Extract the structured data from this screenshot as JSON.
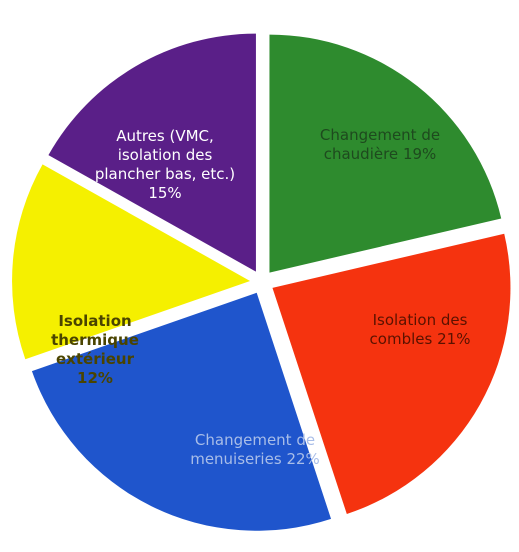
{
  "chart_data": {
    "type": "pie",
    "categories": [
      "Changement de chaudière",
      "Isolation des combles",
      "Changement de menuiseries",
      "Isolation thermique extérieur",
      "Autres (VMC, isolation des plancher bas, etc.)"
    ],
    "values": [
      19,
      21,
      22,
      12,
      15
    ],
    "value_labels": [
      "19%",
      "21%",
      "22%",
      "12%",
      "15%"
    ],
    "colors": [
      "#2e8b2e",
      "#f5330f",
      "#1f55cc",
      "#f5f000",
      "#5a1f88"
    ]
  }
}
